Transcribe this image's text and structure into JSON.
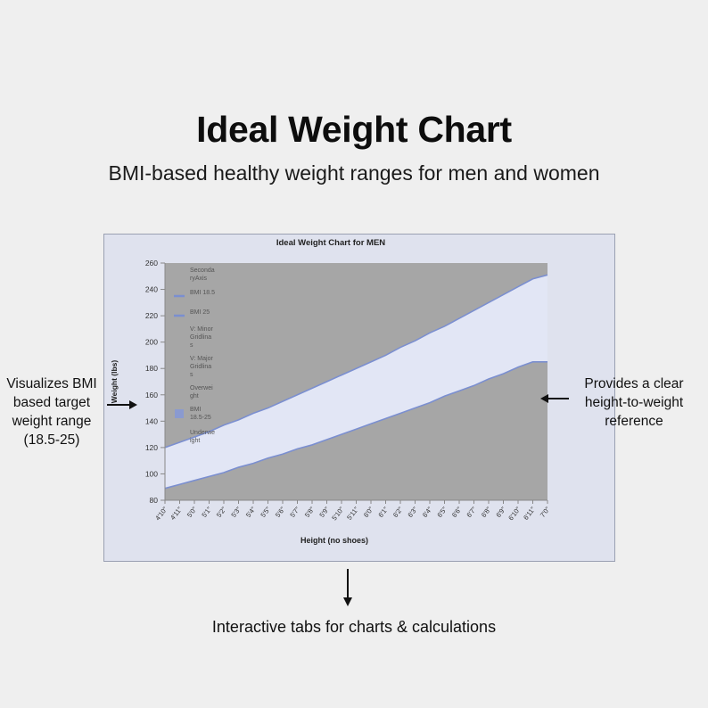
{
  "header": {
    "title": "Ideal Weight Chart",
    "subtitle": "BMI-based healthy weight ranges for men and women"
  },
  "callouts": {
    "left": [
      "Visualizes BMI",
      "based target",
      "weight range",
      "(18.5-25)"
    ],
    "right": [
      "Provides a clear",
      "height-to-weight",
      "reference"
    ],
    "bottom": "Interactive tabs for charts & calculations"
  },
  "colors": {
    "band_fill": "#e2e6f5",
    "outside_fill": "#a6a6a6",
    "line_color": "#7b8fd0",
    "frame_bg": "#dfe2ee"
  },
  "chart_data": {
    "type": "area",
    "title": "Ideal Weight Chart for MEN",
    "xlabel": "Height (no shoes)",
    "ylabel": "Weight (lbs)",
    "ylim": [
      80,
      260
    ],
    "yticks": [
      80,
      100,
      120,
      140,
      160,
      180,
      200,
      220,
      240,
      260
    ],
    "categories": [
      "4'10\"",
      "4'11\"",
      "5'0\"",
      "5'1\"",
      "5'2\"",
      "5'3\"",
      "5'4\"",
      "5'5\"",
      "5'6\"",
      "5'7\"",
      "5'8\"",
      "5'9\"",
      "5'10\"",
      "5'11\"",
      "6'0\"",
      "6'1\"",
      "6'2\"",
      "6'3\"",
      "6'4\"",
      "6'5\"",
      "6'6\"",
      "6'7\"",
      "6'8\"",
      "6'9\"",
      "6'10\"",
      "6'11\"",
      "7'0\""
    ],
    "series": [
      {
        "name": "BMI 18.5",
        "values": [
          89,
          92,
          95,
          98,
          101,
          105,
          108,
          112,
          115,
          119,
          122,
          126,
          130,
          134,
          138,
          142,
          146,
          150,
          154,
          159,
          163,
          167,
          172,
          176,
          181,
          185,
          185
        ]
      },
      {
        "name": "BMI 25",
        "values": [
          120,
          124,
          128,
          132,
          137,
          141,
          146,
          150,
          155,
          160,
          165,
          170,
          175,
          180,
          185,
          190,
          196,
          201,
          207,
          212,
          218,
          224,
          230,
          236,
          242,
          248,
          251
        ]
      }
    ],
    "legend": {
      "position": "top-left",
      "entries": [
        {
          "lines": [
            "Seconda",
            "ryAxis"
          ],
          "swatch": "none"
        },
        {
          "lines": [
            "BMI 18.5"
          ],
          "swatch": "line"
        },
        {
          "lines": [
            "BMI 25"
          ],
          "swatch": "line"
        },
        {
          "lines": [
            "V: Minor",
            "Gridlina",
            "s"
          ],
          "swatch": "none"
        },
        {
          "lines": [
            "V: Major",
            "Gridlina",
            "s"
          ],
          "swatch": "none"
        },
        {
          "lines": [
            "Overwei",
            "ght"
          ],
          "swatch": "none"
        },
        {
          "lines": [
            "BMI",
            "18.5-25"
          ],
          "swatch": "box"
        },
        {
          "lines": [
            "Underwe",
            "ight"
          ],
          "swatch": "none"
        }
      ]
    },
    "grid": false
  }
}
